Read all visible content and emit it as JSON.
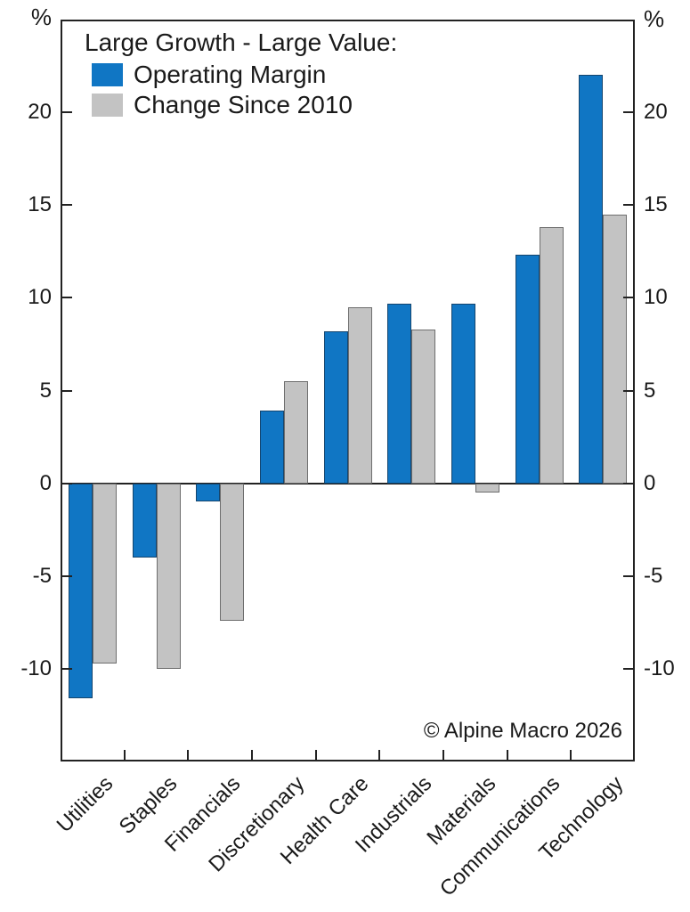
{
  "chart_data": {
    "type": "bar",
    "title": "Large Growth - Large Value:",
    "unit_label": "%",
    "categories": [
      "Utilities",
      "Staples",
      "Financials",
      "Discretionary",
      "Health Care",
      "Industrials",
      "Materials",
      "Communications",
      "Technology"
    ],
    "series": [
      {
        "name": "Operating Margin",
        "color": "#1076c4",
        "border_color": "#14456e",
        "values": [
          -11.6,
          -4.0,
          -1.0,
          3.9,
          8.2,
          9.7,
          9.7,
          12.3,
          22.0
        ]
      },
      {
        "name": "Change Since 2010",
        "color": "#c3c3c3",
        "border_color": "#6e6e6e",
        "values": [
          -9.7,
          -10.0,
          -7.4,
          5.5,
          9.5,
          8.3,
          -0.5,
          13.8,
          14.5
        ]
      }
    ],
    "ylim": [
      -15,
      25
    ],
    "yticks": [
      20,
      15,
      10,
      5,
      0,
      -5,
      -10
    ],
    "grid": false,
    "legend_position": "top-left-inside",
    "axis_color": "#222222",
    "copyright": "© Alpine Macro 2026"
  }
}
